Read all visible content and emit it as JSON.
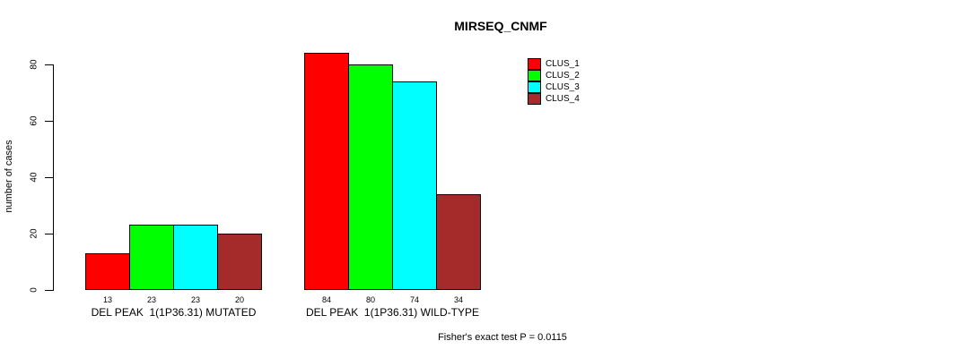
{
  "chart_data": {
    "type": "bar",
    "title": "MIRSEQ_CNMF",
    "xlabel": "",
    "ylabel": "number of cases",
    "categories": [
      "DEL PEAK  1(1P36.31) MUTATED",
      "DEL PEAK  1(1P36.31) WILD-TYPE"
    ],
    "series": [
      {
        "name": "CLUS_1",
        "color": "#ff0000",
        "values": [
          13,
          84
        ]
      },
      {
        "name": "CLUS_2",
        "color": "#00ff00",
        "values": [
          23,
          80
        ]
      },
      {
        "name": "CLUS_3",
        "color": "#00ffff",
        "values": [
          23,
          74
        ]
      },
      {
        "name": "CLUS_4",
        "color": "#a52a2a",
        "values": [
          20,
          34
        ]
      }
    ],
    "value_labels": [
      [
        13,
        23,
        23,
        20
      ],
      [
        84,
        80,
        74,
        34
      ]
    ],
    "yticks": [
      0,
      20,
      40,
      60,
      80
    ],
    "ylim": [
      0,
      84
    ],
    "grid": false,
    "legend_position": "top-right",
    "annotation": "Fisher's exact test P = 0.0115"
  }
}
